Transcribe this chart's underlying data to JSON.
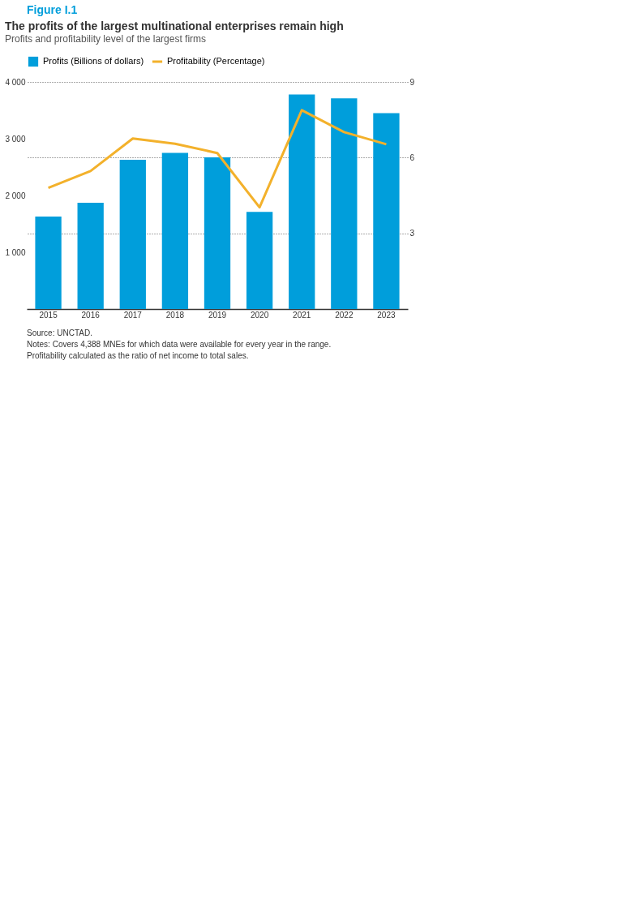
{
  "chart_data": {
    "type": "bar",
    "title": "The profits of the largest multinational enterprises remain high",
    "subtitle": "Profits and profitability level of the largest firms",
    "categories": [
      "2015",
      "2016",
      "2017",
      "2018",
      "2019",
      "2020",
      "2021",
      "2022",
      "2023"
    ],
    "series": [
      {
        "name": "Profits (Billions of dollars)",
        "color": "#009edb",
        "values": [
          1630,
          1870,
          2630,
          2750,
          2670,
          1710,
          3780,
          3710,
          3450
        ]
      },
      {
        "name": "Profitability (Percentage)",
        "type": "line",
        "axis": "y2",
        "color": "#f3b12b",
        "values": [
          4.8,
          5.47,
          6.76,
          6.55,
          6.18,
          4.03,
          7.88,
          7.01,
          6.53
        ]
      }
    ],
    "ylim": [
      0,
      4000
    ],
    "yticks": [
      1000,
      2000,
      3000,
      4000
    ],
    "y2lim": [
      0,
      9
    ],
    "y2ticks": [
      3,
      6,
      9
    ],
    "grid": "y2",
    "legend": "top left",
    "marker": "none",
    "line_style": "solid",
    "annotations": [
      "Figure I.1",
      "Source: UNCTAD.",
      "Notes: Covers 4,388 MNEs for which data were available for every year in the range. Profitability calculated as the ratio of net income to total sales."
    ]
  }
}
